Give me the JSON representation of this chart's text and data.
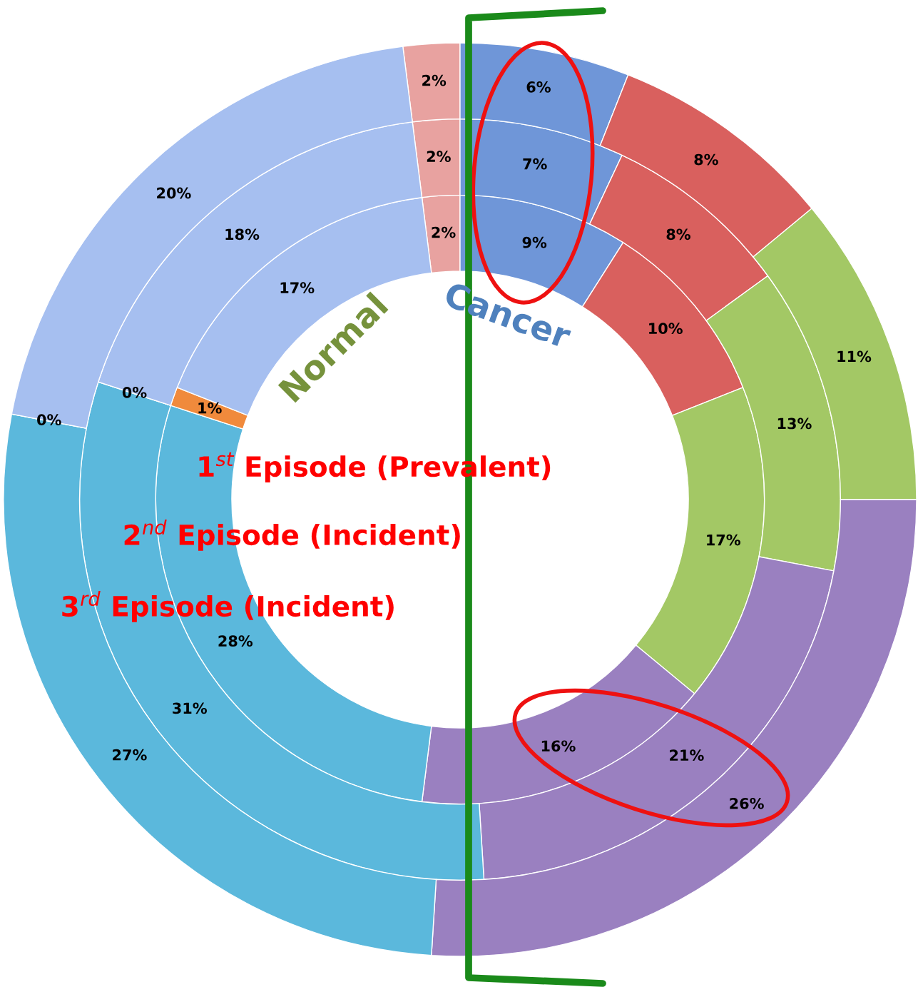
{
  "chart_data": {
    "type": "donut",
    "categories": [
      null,
      null,
      null,
      null,
      null,
      null,
      null,
      null
    ],
    "colors": [
      "#e8a2a0",
      "#6f96d8",
      "#d9605e",
      "#a3c865",
      "#9a80c0",
      "#5bb8dc",
      "#f08a3c",
      "#a6bff0"
    ],
    "series": [
      {
        "name": "1$^{st}$ Episode (Prevalent)",
        "values": [
          2,
          9,
          10,
          17,
          16,
          28,
          1,
          17
        ],
        "value_labels": [
          "2%",
          "9%",
          "10%",
          "17%",
          "16%",
          "28%",
          "1%",
          "17%"
        ]
      },
      {
        "name": "2$^{nd}$ Episode (Incident)",
        "values": [
          2,
          7,
          8,
          13,
          21,
          31,
          0,
          18
        ],
        "value_labels": [
          "2%",
          "7%",
          "8%",
          "13%",
          "21%",
          "31%",
          "0%",
          "18%"
        ]
      },
      {
        "name": "3$^{rd}$ Episode (Incident)",
        "values": [
          2,
          6,
          8,
          11,
          26,
          27,
          0,
          20
        ],
        "value_labels": [
          "2%",
          "6%",
          "8%",
          "11%",
          "26%",
          "27%",
          "0%",
          "20%"
        ]
      }
    ],
    "annotations": [
      "Normal",
      "Cancer"
    ]
  }
}
